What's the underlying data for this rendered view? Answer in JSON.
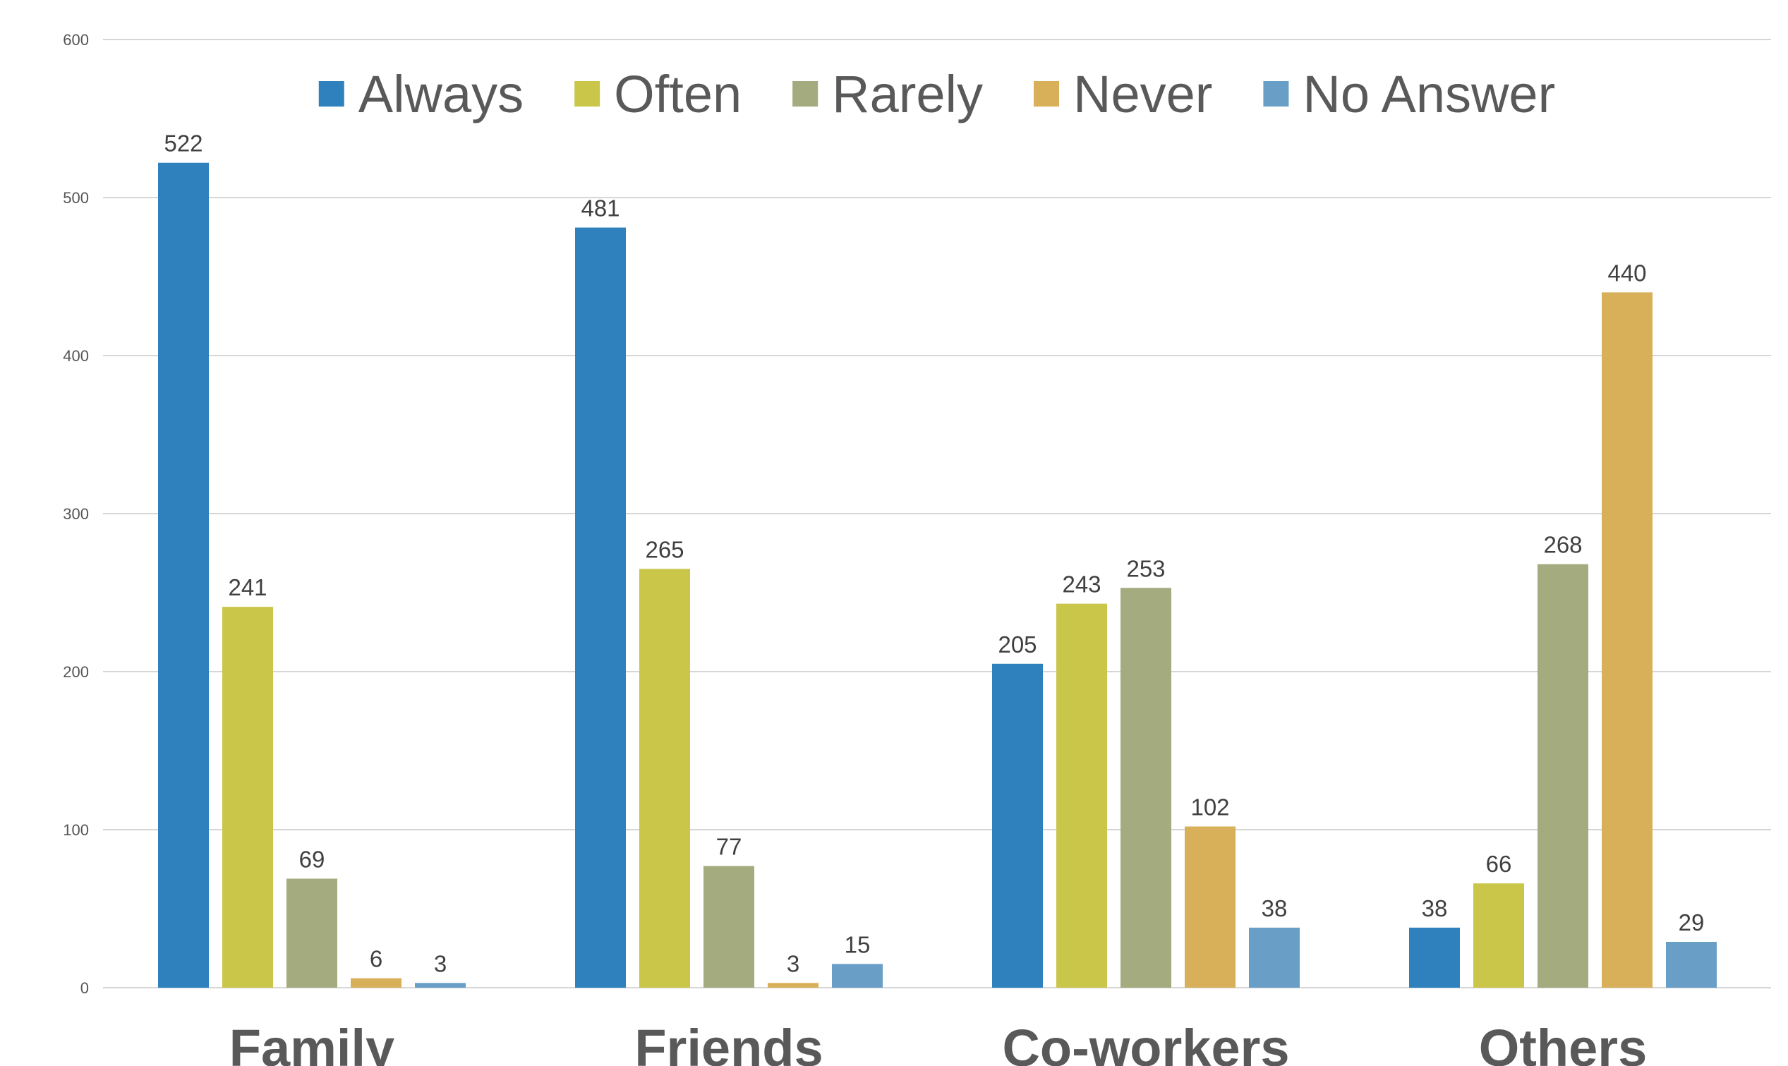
{
  "chart_data": {
    "type": "bar",
    "categories": [
      "Family",
      "Friends",
      "Co-workers",
      "Others"
    ],
    "series": [
      {
        "name": "Always",
        "color": "#2e81bd",
        "values": [
          522,
          481,
          205,
          38
        ]
      },
      {
        "name": "Often",
        "color": "#c9c64a",
        "values": [
          241,
          265,
          243,
          66
        ]
      },
      {
        "name": "Rarely",
        "color": "#a4ab7f",
        "values": [
          69,
          77,
          253,
          268
        ]
      },
      {
        "name": "Never",
        "color": "#d8b05a",
        "values": [
          6,
          3,
          102,
          440
        ]
      },
      {
        "name": "No Answer",
        "color": "#699fc6",
        "values": [
          3,
          15,
          38,
          29
        ]
      }
    ],
    "ylim": [
      0,
      600
    ],
    "yticks": [
      0,
      100,
      200,
      300,
      400,
      500,
      600
    ],
    "grid": true,
    "legend_position": "top",
    "data_labels": true
  }
}
